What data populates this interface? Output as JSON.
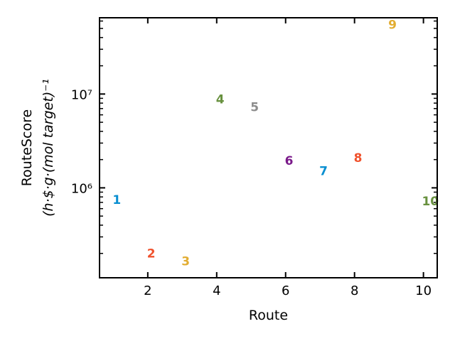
{
  "chart_data": {
    "type": "scatter",
    "title": "",
    "xlabel": "Route",
    "ylabel_line1": "RouteScore",
    "ylabel_line2": "(h·$·g·(mol target)⁻¹",
    "yscale": "log",
    "xlim": [
      0.6,
      10.4
    ],
    "ylim": [
      110000,
      65000000
    ],
    "grid": false,
    "x_ticks": [
      2,
      4,
      6,
      8,
      10
    ],
    "x_tick_labels": [
      "2",
      "4",
      "6",
      "8",
      "10"
    ],
    "y_ticks": [
      1000000,
      10000000
    ],
    "y_tick_labels": [
      "10⁶",
      "10⁷"
    ],
    "points": [
      {
        "x": 1.1,
        "y": 750000,
        "label": "1",
        "color": "#0a8fd1"
      },
      {
        "x": 2.1,
        "y": 200000,
        "label": "2",
        "color": "#f0522d"
      },
      {
        "x": 3.1,
        "y": 165000,
        "label": "3",
        "color": "#e2ad32"
      },
      {
        "x": 4.1,
        "y": 8800000,
        "label": "4",
        "color": "#68913f"
      },
      {
        "x": 5.1,
        "y": 7300000,
        "label": "5",
        "color": "#8c8c8c"
      },
      {
        "x": 6.1,
        "y": 1950000,
        "label": "6",
        "color": "#7a1a8a"
      },
      {
        "x": 7.1,
        "y": 1520000,
        "label": "7",
        "color": "#0a8fd1"
      },
      {
        "x": 8.1,
        "y": 2100000,
        "label": "8",
        "color": "#f0522d"
      },
      {
        "x": 9.1,
        "y": 55000000,
        "label": "9",
        "color": "#e2ad32"
      },
      {
        "x": 10.2,
        "y": 720000,
        "label": "10",
        "color": "#68913f"
      }
    ]
  }
}
